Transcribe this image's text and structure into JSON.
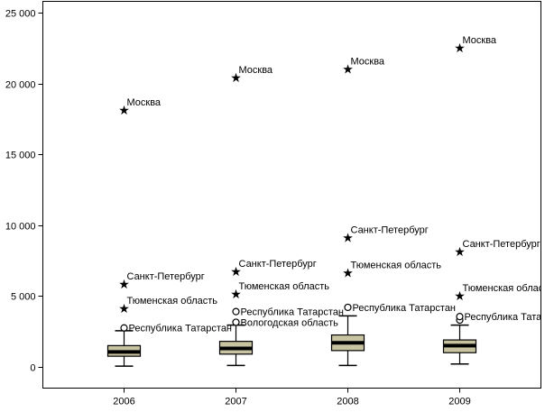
{
  "chart_data": {
    "type": "box",
    "title": "",
    "xlabel": "",
    "ylabel": "",
    "ylim": [
      -1500,
      25800
    ],
    "yticks": [
      0,
      5000,
      10000,
      15000,
      20000,
      25000
    ],
    "ytick_labels": [
      "0",
      "5 000",
      "10 000",
      "15 000",
      "20 000",
      "25 000"
    ],
    "categories": [
      "2006",
      "2007",
      "2008",
      "2009"
    ],
    "grid": false,
    "legend": "none",
    "colors": {
      "box_fill": "#c8c3a0",
      "stroke": "#000000",
      "background": "#ffffff"
    },
    "boxes": [
      {
        "category": "2006",
        "whisker_low": 50,
        "q1": 750,
        "median": 1050,
        "q3": 1500,
        "whisker_high": 2550
      },
      {
        "category": "2007",
        "whisker_low": 100,
        "q1": 900,
        "median": 1300,
        "q3": 1800,
        "whisker_high": 2950
      },
      {
        "category": "2008",
        "whisker_low": 100,
        "q1": 1150,
        "median": 1700,
        "q3": 2250,
        "whisker_high": 3600
      },
      {
        "category": "2009",
        "whisker_low": 200,
        "q1": 1000,
        "median": 1500,
        "q3": 1900,
        "whisker_high": 2950
      }
    ],
    "outliers": [
      {
        "category": "2006",
        "y": 2750,
        "marker": "circle"
      },
      {
        "category": "2007",
        "y": 3150,
        "marker": "circle"
      },
      {
        "category": "2007",
        "y": 3900,
        "marker": "circle"
      },
      {
        "category": "2008",
        "y": 4200,
        "marker": "circle"
      },
      {
        "category": "2009",
        "y": 3300,
        "marker": "circle"
      },
      {
        "category": "2009",
        "y": 3550,
        "marker": "circle"
      }
    ],
    "extremes": [
      {
        "category": "2006",
        "y": 18200,
        "label": "Москва"
      },
      {
        "category": "2006",
        "y": 5900,
        "label": "Санкт-Петербург"
      },
      {
        "category": "2006",
        "y": 4200,
        "label": "Тюменская область"
      },
      {
        "category": "2007",
        "y": 20500,
        "label": "Москва"
      },
      {
        "category": "2007",
        "y": 6800,
        "label": "Санкт-Петербург"
      },
      {
        "category": "2007",
        "y": 5200,
        "label": "Тюменская область"
      },
      {
        "category": "2008",
        "y": 21100,
        "label": "Москва"
      },
      {
        "category": "2008",
        "y": 9200,
        "label": "Санкт-Петербург"
      },
      {
        "category": "2008",
        "y": 6700,
        "label": "Тюменская область"
      },
      {
        "category": "2009",
        "y": 22600,
        "label": "Москва"
      },
      {
        "category": "2009",
        "y": 8200,
        "label": "Санкт-Петербург"
      },
      {
        "category": "2009",
        "y": 5100,
        "label": "Тюменская облас"
      }
    ],
    "outlier_labels": [
      {
        "category": "2006",
        "y": 2750,
        "label": "Республика Татарстан"
      },
      {
        "category": "2007",
        "y": 3900,
        "label": "Республика Татарстан"
      },
      {
        "category": "2007",
        "y": 3150,
        "label": "Вологодская область"
      },
      {
        "category": "2008",
        "y": 4200,
        "label": "Республика Татарстан"
      },
      {
        "category": "2009",
        "y": 3550,
        "label": "Республика Татар"
      }
    ]
  }
}
